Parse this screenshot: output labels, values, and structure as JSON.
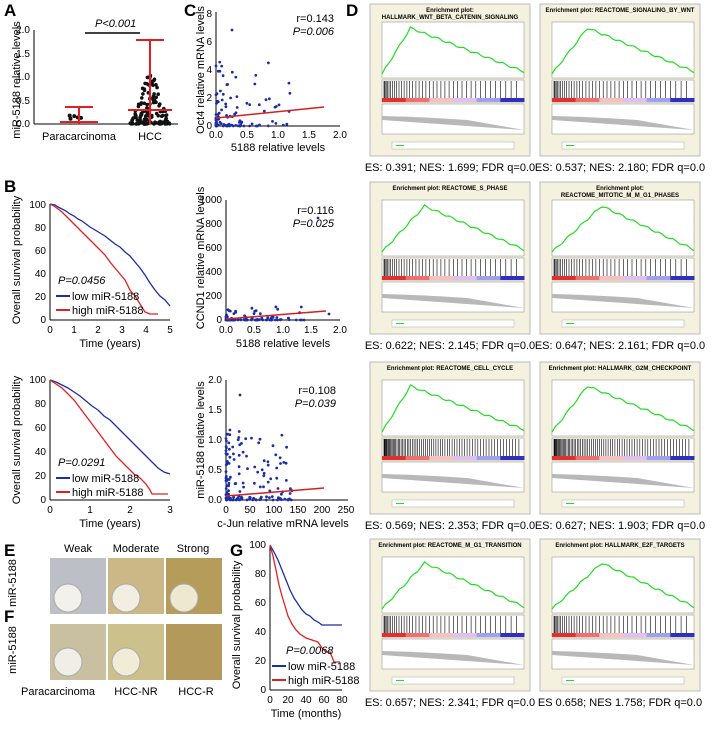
{
  "panels": {
    "A": {
      "label": "A",
      "ylabel": "miR-5188 relative levels",
      "pval": "P<0.001",
      "yticks": [
        "0.0",
        "0.5",
        "1.0",
        "1.5",
        "2.0"
      ],
      "groups": [
        "Paracarcinoma",
        "HCC"
      ]
    },
    "B": {
      "label": "B",
      "ylabel": "Overall survival probability",
      "xlabel": "Time (years)",
      "plot1": {
        "pval": "P=0.0456",
        "xticks": [
          "0",
          "1",
          "2",
          "3",
          "4",
          "5"
        ],
        "yticks": [
          "0",
          "20",
          "40",
          "60",
          "80",
          "100"
        ]
      },
      "plot2": {
        "pval": "P=0.0291",
        "xticks": [
          "0",
          "1",
          "2",
          "3"
        ],
        "yticks": [
          "0",
          "20",
          "40",
          "60",
          "80",
          "100"
        ]
      },
      "legend": [
        "low miR-5188",
        "high miR-5188"
      ]
    },
    "C": {
      "label": "C",
      "plot1": {
        "ylabel": "Oct4 relative mRNA levels",
        "xlabel": "5188 relative levels",
        "r": "r=0.143",
        "p": "P=0.006",
        "xticks": [
          "0.0",
          "0.5",
          "1.0",
          "1.5",
          "2.0"
        ],
        "yticks": [
          "0",
          "2",
          "4",
          "6",
          "8"
        ]
      },
      "plot2": {
        "ylabel": "CCND1 relative mRNA levels",
        "xlabel": "5188 relative levels",
        "r": "r=0.116",
        "p": "P=0.025",
        "xticks": [
          "0.0",
          "0.5",
          "1.0",
          "1.5",
          "2.0"
        ],
        "yticks": [
          "0",
          "200",
          "400",
          "600",
          "800",
          "1000"
        ]
      },
      "plot3": {
        "ylabel": "miR-5188 relative levels",
        "xlabel": "c-Jun relative mRNA levels",
        "r": "r=0.108",
        "p": "P=0.039",
        "xticks": [
          "0",
          "50",
          "100",
          "150",
          "200",
          "250"
        ],
        "yticks": [
          "0.0",
          "0.5",
          "1.0",
          "1.5",
          "2.0"
        ]
      }
    },
    "D": {
      "label": "D",
      "plots": [
        {
          "title1": "Enrichment plot:",
          "title2": "HALLMARK_WNT_BETA_CATENIN_SIGNALING",
          "caption": "ES: 0.391; NES: 1.699; FDR q=0.0"
        },
        {
          "title1": "Enrichment plot: REACTOME_SIGNALING_BY_WNT",
          "title2": "",
          "caption": "ES: 0.537; NES: 2.180; FDR q=0.0"
        },
        {
          "title1": "Enrichment plot: REACTOME_S_PHASE",
          "title2": "",
          "caption": "ES: 0.622; NES: 2.145; FDR q=0.0"
        },
        {
          "title1": "Enrichment plot:",
          "title2": "REACTOME_MITOTIC_M_M_G1_PHASES",
          "caption": "ES: 0.647; NES: 2.161; FDR q=0.0"
        },
        {
          "title1": "Enrichment plot: REACTOME_CELL_CYCLE",
          "title2": "",
          "caption": "ES: 0.569; NES: 2.353; FDR q=0.0"
        },
        {
          "title1": "Enrichment plot: HALLMARK_G2M_CHECKPOINT",
          "title2": "",
          "caption": "ES: 0.627; NES: 1.903; FDR q=0.0"
        },
        {
          "title1": "Enrichment plot: REACTOME_M_G1_TRANSITION",
          "title2": "",
          "caption": "ES: 0.657; NES: 2.341; FDR q=0.0"
        },
        {
          "title1": "Enrichment plot: HALLMARK_E2F_TARGETS",
          "title2": "",
          "caption": "ES 0.658; NES 1.758; FDR q=0.0"
        }
      ]
    },
    "E": {
      "label": "E",
      "side": "miR-5188",
      "cols": [
        "Weak",
        "Moderate",
        "Strong"
      ]
    },
    "F": {
      "label": "F",
      "side": "miR-5188",
      "cols": [
        "Paracarcinoma",
        "HCC-NR",
        "HCC-R"
      ]
    },
    "G": {
      "label": "G",
      "ylabel": "Overall survival probability",
      "xlabel": "Time (months)",
      "pval": "P=0.0068",
      "xticks": [
        "0",
        "20",
        "40",
        "60",
        "80"
      ],
      "yticks": [
        "0",
        "20",
        "40",
        "60",
        "80",
        "100"
      ],
      "legend": [
        "low miR-5188",
        "high miR-5188"
      ]
    }
  },
  "colors": {
    "low": "#1a2ea8",
    "high": "#e02020",
    "gsea_line": "#22dd22",
    "scatter": "#1a2ea8",
    "fit": "#d42020"
  },
  "chart_data": [
    {
      "type": "scatter",
      "title": "A",
      "groups": [
        "Paracarcinoma",
        "HCC"
      ],
      "ylim": [
        0,
        2
      ],
      "mean": [
        0.02,
        0.3
      ],
      "err_top": [
        0.32,
        1.78
      ]
    },
    {
      "type": "line",
      "title": "B top",
      "series": [
        {
          "name": "low miR-5188"
        },
        {
          "name": "high miR-5188"
        }
      ],
      "xlim": [
        0,
        5
      ],
      "ylim": [
        0,
        100
      ]
    },
    {
      "type": "line",
      "title": "B bottom",
      "series": [
        {
          "name": "low miR-5188"
        },
        {
          "name": "high miR-5188"
        }
      ],
      "xlim": [
        0,
        3
      ],
      "ylim": [
        0,
        100
      ]
    },
    {
      "type": "scatter",
      "title": "C Oct4",
      "xlim": [
        0,
        2
      ],
      "ylim": [
        0,
        8
      ]
    },
    {
      "type": "scatter",
      "title": "C CCND1",
      "xlim": [
        0,
        2
      ],
      "ylim": [
        0,
        1000
      ]
    },
    {
      "type": "scatter",
      "title": "C c-Jun",
      "xlim": [
        0,
        250
      ],
      "ylim": [
        0,
        2
      ]
    },
    {
      "type": "line",
      "title": "G",
      "series": [
        {
          "name": "low miR-5188"
        },
        {
          "name": "high miR-5188"
        }
      ],
      "xlim": [
        0,
        80
      ],
      "ylim": [
        0,
        100
      ]
    }
  ]
}
